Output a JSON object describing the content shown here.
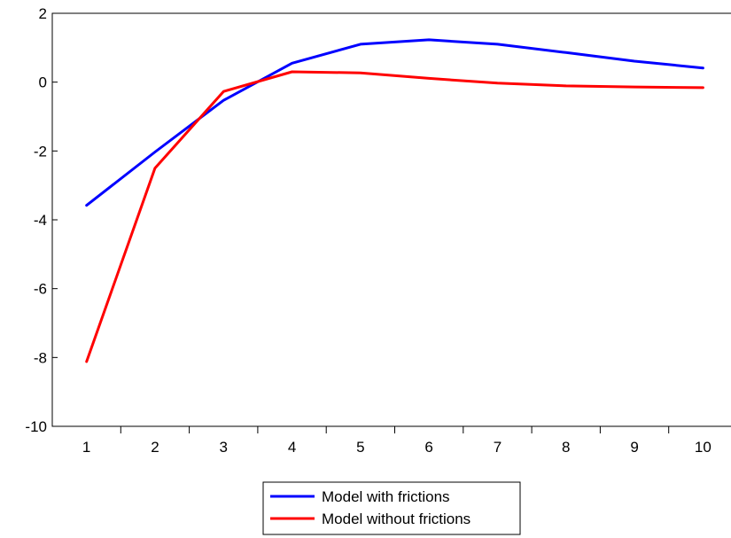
{
  "chart_data": {
    "type": "line",
    "title": "",
    "xlabel": "",
    "ylabel": "",
    "x": [
      1,
      2,
      3,
      4,
      5,
      6,
      7,
      8,
      9,
      10
    ],
    "x_tick_labels": [
      "1",
      "2",
      "3",
      "4",
      "5",
      "6",
      "7",
      "8",
      "9",
      "10"
    ],
    "ylim": [
      -10,
      2
    ],
    "y_ticks": [
      2,
      0,
      -2,
      -4,
      -6,
      -8,
      -10
    ],
    "y_tick_labels": [
      "2",
      "0",
      "-2",
      "-4",
      "-6",
      "-8",
      "-10"
    ],
    "grid": false,
    "legend_position": "bottom-center",
    "series": [
      {
        "name": "Model with frictions",
        "color": "#0000ff",
        "values": [
          -3.58,
          -2.03,
          -0.53,
          0.55,
          1.1,
          1.23,
          1.1,
          0.86,
          0.61,
          0.41
        ]
      },
      {
        "name": "Model without frictions",
        "color": "#ff0000",
        "values": [
          -8.12,
          -2.5,
          -0.27,
          0.3,
          0.27,
          0.11,
          -0.03,
          -0.11,
          -0.14,
          -0.16
        ]
      }
    ]
  }
}
